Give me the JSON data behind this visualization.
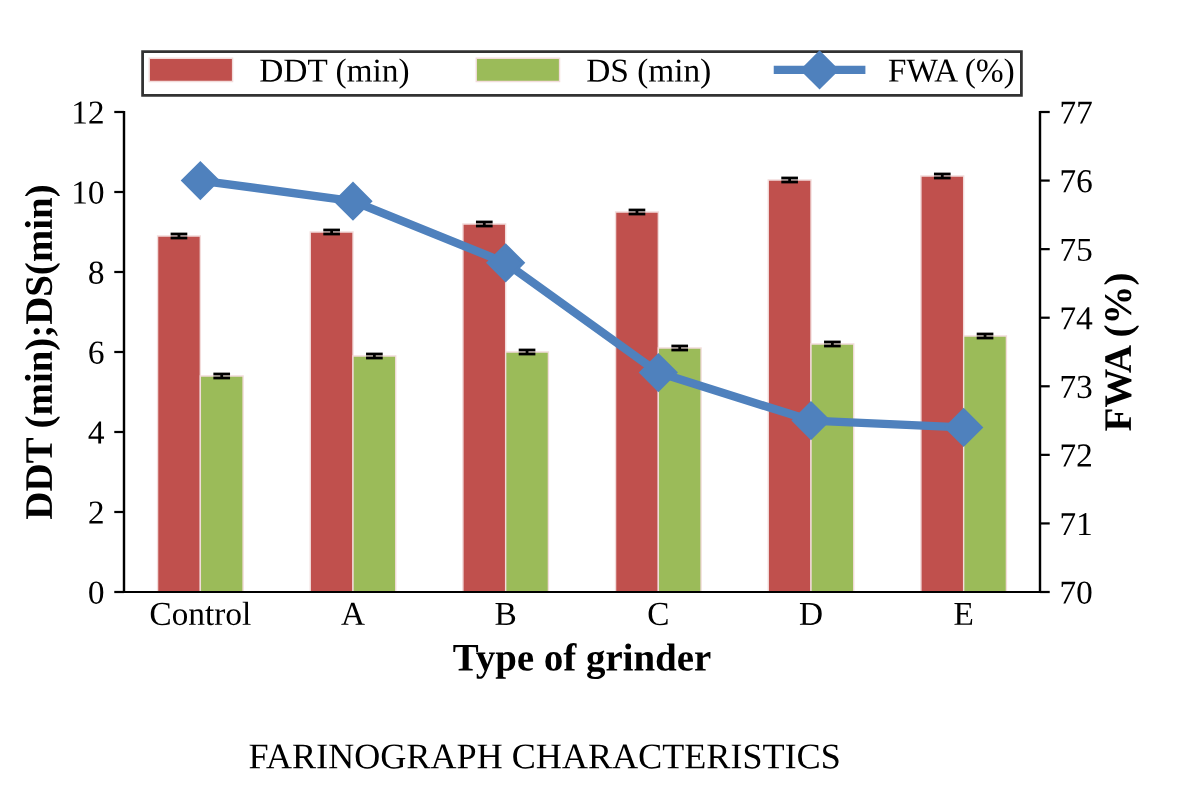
{
  "chart_data": {
    "type": "bar",
    "categories": [
      "Control",
      "A",
      "B",
      "C",
      "D",
      "E"
    ],
    "xlabel": "Type of grinder",
    "ylabel": "DDT (min);DS(min)",
    "y2label": "FWA (%)",
    "series": [
      {
        "name": "DDT (min)",
        "color": "#c0504d",
        "values": [
          8.9,
          9.0,
          9.2,
          9.5,
          10.3,
          10.4
        ],
        "errors": [
          0.05,
          0.05,
          0.05,
          0.05,
          0.05,
          0.05
        ]
      },
      {
        "name": "DS (min)",
        "color": "#9bbb59",
        "values": [
          5.4,
          5.9,
          6.0,
          6.1,
          6.2,
          6.4
        ],
        "errors": [
          0.05,
          0.05,
          0.05,
          0.05,
          0.05,
          0.05
        ]
      },
      {
        "name": "FWA (%)",
        "type": "line",
        "axis": "y2",
        "color": "#4f81bd",
        "marker": "diamond",
        "values": [
          76.0,
          75.7,
          74.8,
          73.2,
          72.5,
          72.4
        ]
      }
    ],
    "ylim": [
      0,
      12
    ],
    "yticks": [
      0,
      2,
      4,
      6,
      8,
      10,
      12
    ],
    "y2lim": [
      70,
      77
    ],
    "y2ticks": [
      70,
      71,
      72,
      73,
      74,
      75,
      76,
      77
    ],
    "legend": "top",
    "grid": false,
    "annotations": [
      "FARINOGRAPH CHARACTERISTICS"
    ]
  }
}
